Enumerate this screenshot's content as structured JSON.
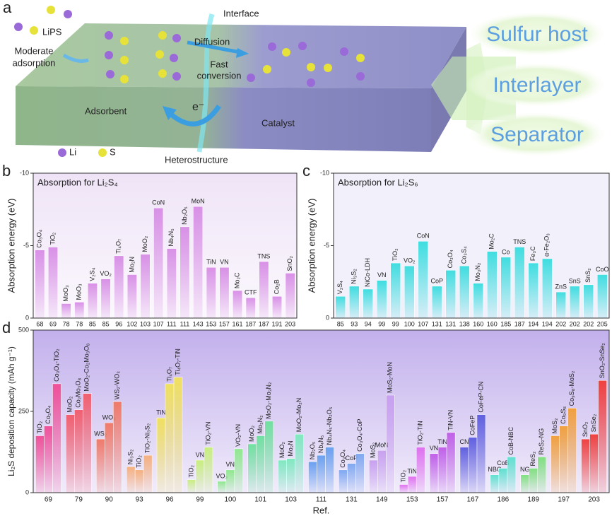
{
  "diagram": {
    "panel": "a",
    "lips": "LiPS",
    "moderate": "Moderate",
    "adsorption": "adsorption",
    "interface": "Interface",
    "diffusion": "Diffusion",
    "fast": "Fast",
    "conversion": "conversion",
    "adsorbent": "Adsorbent",
    "catalyst": "Catalyst",
    "electron": "e⁻",
    "li": "Li",
    "s": "S",
    "heterostructure": "Heterostructure",
    "targets": [
      "Sulfur host",
      "Interlayer",
      "Separator"
    ]
  },
  "chart_data": [
    {
      "type": "bar",
      "panel": "b",
      "title": "Absorption for Li₂S₄",
      "xlabel": "Ref.",
      "ylabel": "Absorption energy (eV)",
      "color": "#d890e6",
      "categories": [
        "68",
        "69",
        "78",
        "78",
        "85",
        "85",
        "96",
        "102",
        "103",
        "107",
        "111",
        "111",
        "143",
        "153",
        "157",
        "161",
        "187",
        "187",
        "191",
        "203"
      ],
      "bar_labels": [
        "Co₃O₄",
        "TiO₂",
        "MoO₃",
        "MoO₃",
        "V₂S₄",
        "VO₂",
        "Ti₄O₇",
        "Mo₂N",
        "MoO₂",
        "CoN",
        "Nb₄N₅",
        "Nb₂O₅",
        "MoN",
        "TiN",
        "VN",
        "Mo₂C",
        "CTF",
        "TNS",
        "Co₂B",
        "SnO₂"
      ],
      "values": [
        -4.7,
        -4.9,
        -1.0,
        -1.1,
        -2.4,
        -2.7,
        -4.3,
        -3.0,
        -4.4,
        -7.6,
        -4.8,
        -6.3,
        -7.7,
        -3.5,
        -3.5,
        -1.9,
        -1.4,
        -3.9,
        -1.5,
        -3.1
      ],
      "ylim": [
        0,
        -10
      ],
      "yticks": [
        -10,
        -5,
        0
      ]
    },
    {
      "type": "bar",
      "panel": "c",
      "title": "Absorption for Li₂S₆",
      "xlabel": "Ref.",
      "ylabel": "Absorption energy (eV)",
      "color": "#3fdde0",
      "categories": [
        "85",
        "93",
        "94",
        "99",
        "99",
        "100",
        "107",
        "131",
        "131",
        "138",
        "160",
        "160",
        "185",
        "187",
        "194",
        "194",
        "202",
        "202",
        "202",
        "205"
      ],
      "bar_labels": [
        "V₂S₄",
        "Ni₃S₂",
        "NiCo-LDH",
        "VN",
        "TiO₂",
        "VO₂",
        "CoN",
        "CoP",
        "Co₃O₄",
        "Co₃S₄",
        "Mo₃N₂",
        "Mo₂C",
        "Co",
        "TNS",
        "Fe₃C",
        "α-Fe₂O₃",
        "ZnS",
        "SnS",
        "SnS₂",
        "CoO"
      ],
      "values": [
        -1.5,
        -2.2,
        -2.0,
        -2.6,
        -3.8,
        -3.6,
        -5.3,
        -2.2,
        -3.3,
        -3.6,
        -2.4,
        -4.6,
        -4.2,
        -4.9,
        -3.8,
        -4.1,
        -1.8,
        -2.2,
        -2.3,
        -3.0
      ],
      "ylim": [
        0,
        -10
      ],
      "yticks": [
        -10,
        -5,
        0
      ]
    },
    {
      "type": "grouped_bar",
      "panel": "d",
      "xlabel": "Ref.",
      "ylabel": "Li₂S deposition capacity (mAh g⁻¹)",
      "ylim": [
        0,
        500
      ],
      "yticks": [
        0,
        250,
        500
      ],
      "groups": [
        {
          "ref": "69",
          "color": "#f0509a",
          "labels": [
            "TiO₂",
            "Co₃O₄",
            "Co₃O₄-TiO₂"
          ],
          "values": [
            175,
            205,
            335
          ]
        },
        {
          "ref": "79",
          "color": "#f06070",
          "labels": [
            "MoO₂",
            "Co₂Mo₃O₈",
            "MoO₂-Co₂Mo₃O₈"
          ],
          "values": [
            240,
            255,
            305
          ]
        },
        {
          "ref": "90",
          "color": "#f07a6a",
          "labels": [
            "WS₂",
            "WO₃",
            "WS₂-WO₃"
          ],
          "values": [
            165,
            215,
            280
          ]
        },
        {
          "ref": "93",
          "color": "#f5b080",
          "labels": [
            "Ni₃S₂",
            "TiO₂",
            "TiO₂-Ni₃S₂"
          ],
          "values": [
            80,
            70,
            115
          ]
        },
        {
          "ref": "96",
          "color": "#f0e060",
          "labels": [
            "TiN",
            "Ti₄O₇",
            "Ti₄O₇-TiN"
          ],
          "values": [
            230,
            335,
            355
          ]
        },
        {
          "ref": "99",
          "color": "#c8ee80",
          "labels": [
            "TiO₂",
            "VN",
            "TiO₂-VN"
          ],
          "values": [
            40,
            100,
            140
          ]
        },
        {
          "ref": "100",
          "color": "#90e890",
          "labels": [
            "VO₂",
            "VN",
            "VO₂-VN"
          ],
          "values": [
            35,
            70,
            135
          ]
        },
        {
          "ref": "101",
          "color": "#70e0a0",
          "labels": [
            "MoO₂",
            "Mo₃N₂",
            "MoO₂-Mo₃N₂"
          ],
          "values": [
            150,
            175,
            220
          ]
        },
        {
          "ref": "103",
          "color": "#80e8c0",
          "labels": [
            "MoO₂",
            "Mo₂N",
            "MoO₂-Mo₂N"
          ],
          "values": [
            100,
            105,
            180
          ]
        },
        {
          "ref": "111",
          "color": "#6aa0f0",
          "labels": [
            "Nb₂O₅",
            "Nb₄N₅",
            "Nb₄N₅-Nb₂O₅"
          ],
          "values": [
            95,
            115,
            140
          ]
        },
        {
          "ref": "131",
          "color": "#80a8f0",
          "labels": [
            "Co₃O₄",
            "CoP",
            "Co₃O₄-CoP"
          ],
          "values": [
            70,
            90,
            120
          ]
        },
        {
          "ref": "149",
          "color": "#c8a0f0",
          "labels": [
            "MoS₂",
            "MoN",
            "MoS₂-MoN"
          ],
          "values": [
            100,
            130,
            300
          ]
        },
        {
          "ref": "153",
          "color": "#e070f0",
          "labels": [
            "TiO₂",
            "TiN",
            "TiO₂-TiN"
          ],
          "values": [
            25,
            50,
            140
          ]
        },
        {
          "ref": "157",
          "color": "#c060e8",
          "labels": [
            "VN",
            "TiN",
            "TiN-VN"
          ],
          "values": [
            120,
            140,
            185
          ]
        },
        {
          "ref": "167",
          "color": "#6060e0",
          "labels": [
            "CN",
            "CoFeP",
            "CoFeP-CN"
          ],
          "values": [
            140,
            170,
            240
          ]
        },
        {
          "ref": "186",
          "color": "#60e0d0",
          "labels": [
            "NBC",
            "CoB",
            "CoB-NBC"
          ],
          "values": [
            55,
            75,
            110
          ]
        },
        {
          "ref": "189",
          "color": "#80e080",
          "labels": [
            "NG",
            "ReS₂",
            "ReS₂-NG"
          ],
          "values": [
            55,
            75,
            110
          ]
        },
        {
          "ref": "197",
          "color": "#f0a040",
          "labels": [
            "MoS₂",
            "Co₉S₈",
            "Co₉S₈-MoS₂"
          ],
          "values": [
            175,
            205,
            260
          ]
        },
        {
          "ref": "203",
          "color": "#f04040",
          "labels": [
            "SnO₂",
            "SnSe₂",
            "SnO₂-SnSe₂"
          ],
          "values": [
            165,
            180,
            345
          ]
        }
      ]
    }
  ]
}
